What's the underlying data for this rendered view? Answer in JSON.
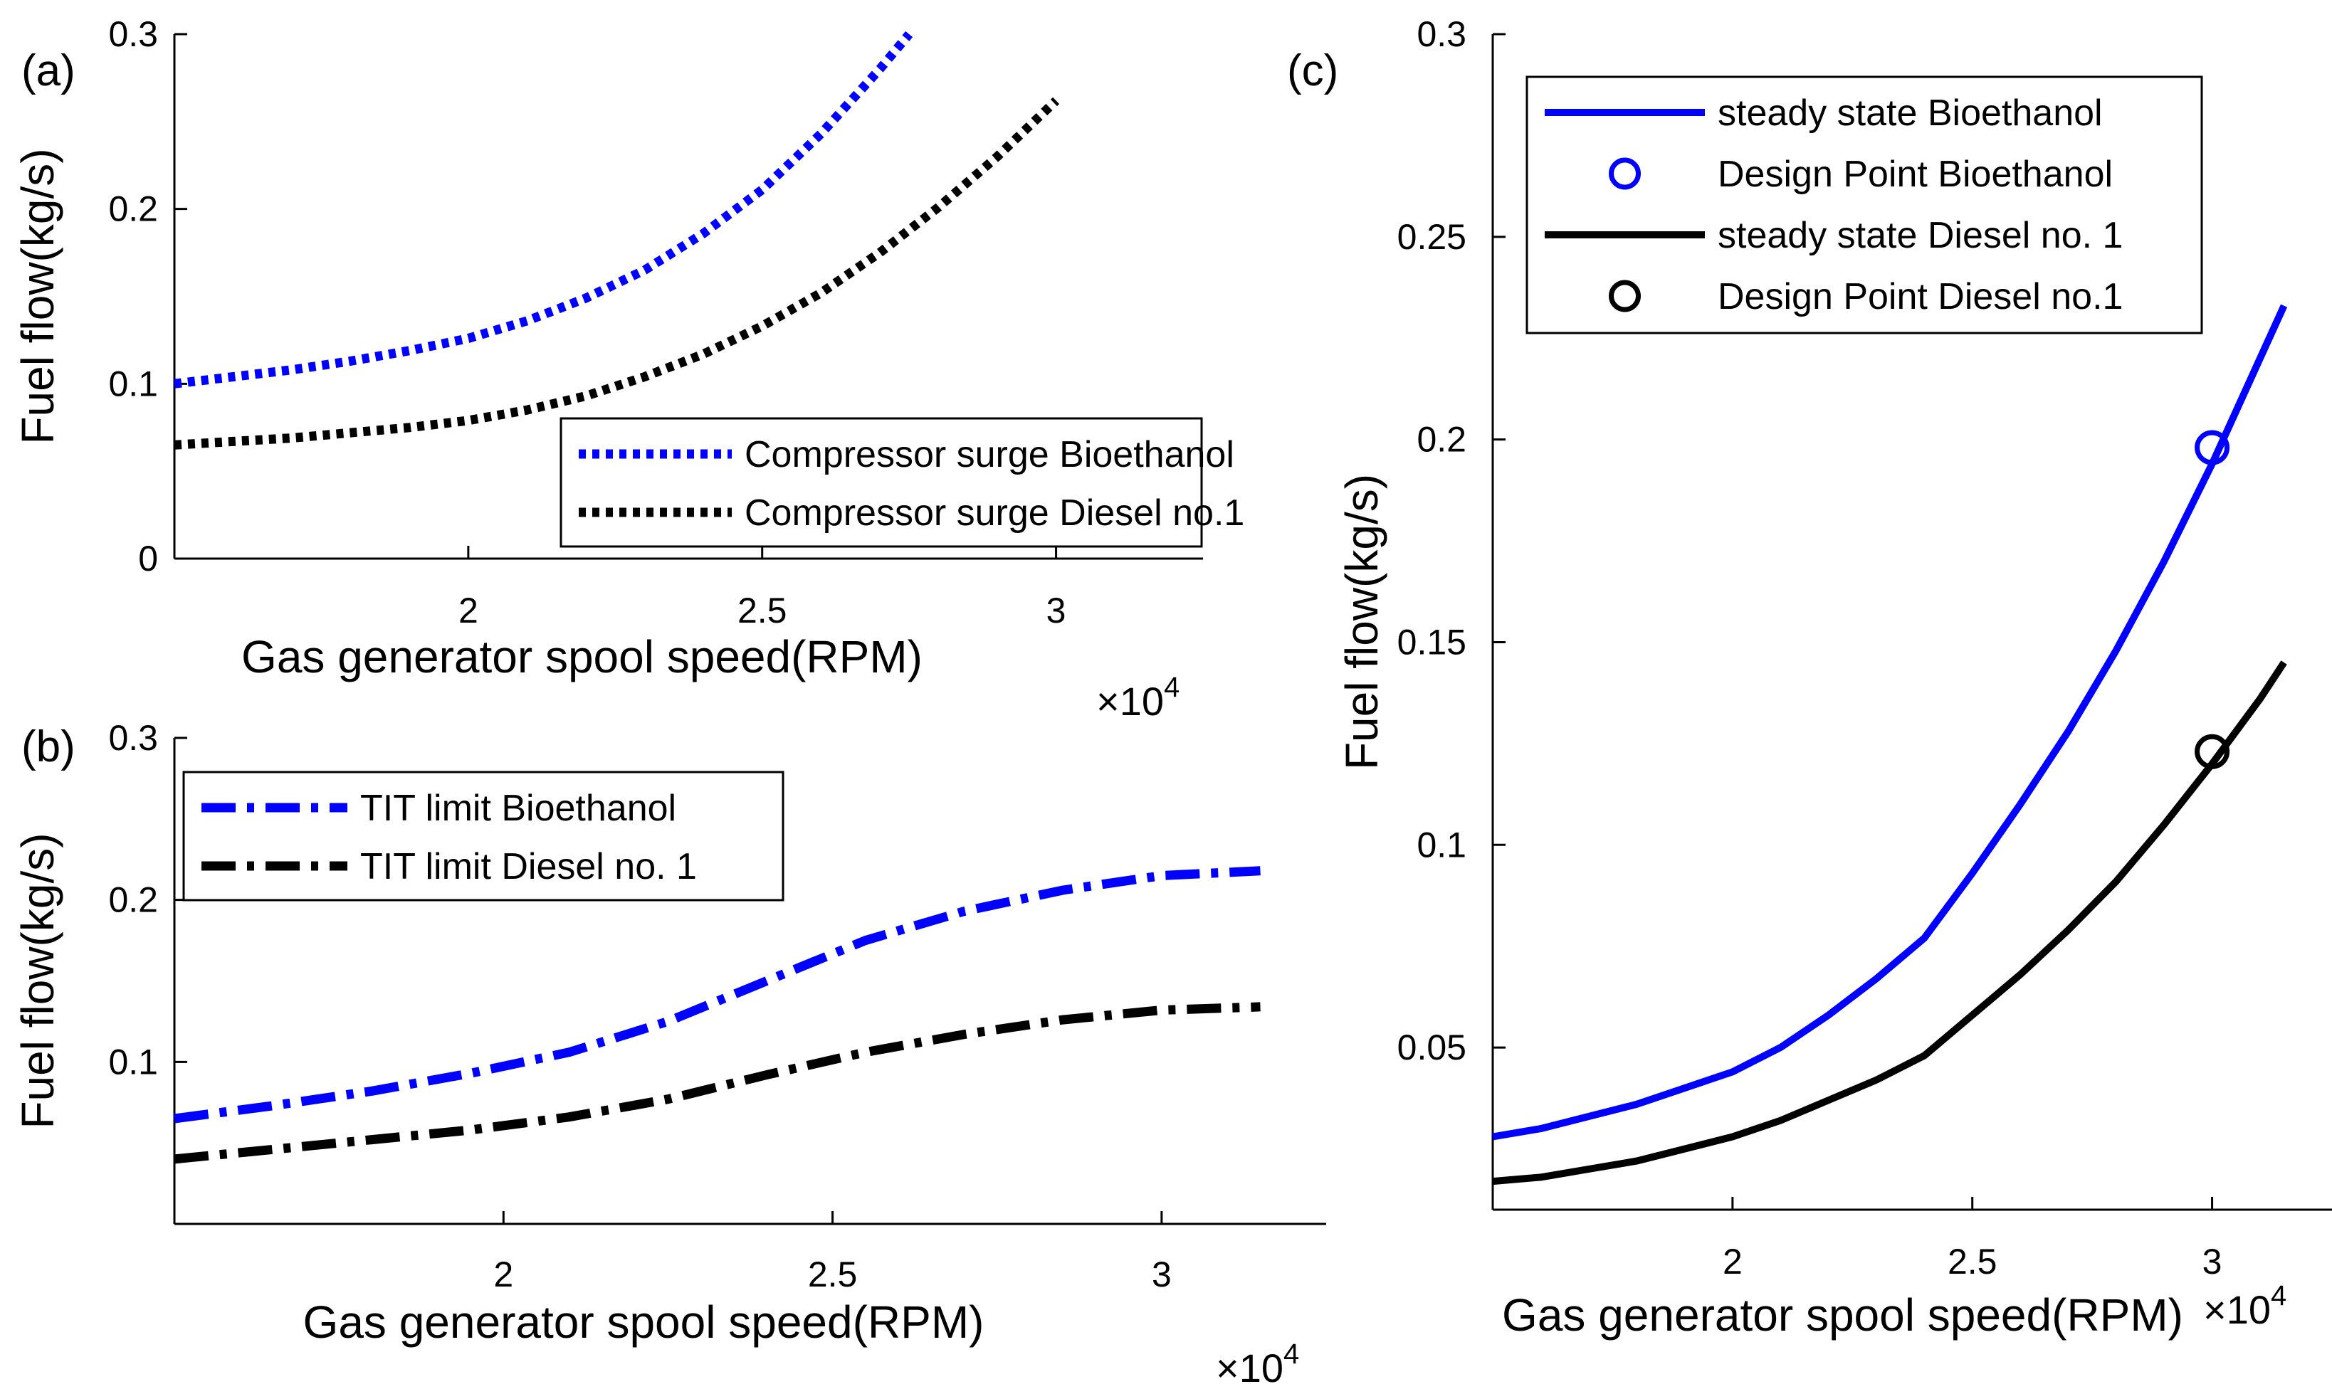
{
  "chart_data": [
    {
      "panel": "(a)",
      "type": "line",
      "xlabel": "Gas generator spool speed(RPM)",
      "ylabel": "Fuel flow(kg/s)",
      "x_multiplier": "×10",
      "x_exponent": "4",
      "xlim": [
        15000,
        32500
      ],
      "ylim": [
        0,
        0.3
      ],
      "xticks": [
        20000,
        25000,
        30000
      ],
      "xtick_labels": [
        "2",
        "2.5",
        "3"
      ],
      "yticks": [
        0,
        0.1,
        0.2,
        0.3
      ],
      "ytick_labels": [
        "0",
        "0.1",
        "0.2",
        "0.3"
      ],
      "legend": "bottom-right",
      "series": [
        {
          "name": "Compressor surge Bioethanol",
          "color": "#0000ff",
          "style": "dotted",
          "x": [
            15000,
            16000,
            17000,
            18000,
            19000,
            20000,
            21000,
            22000,
            23000,
            24000,
            25000,
            26000,
            27000,
            27500
          ],
          "y": [
            0.1,
            0.104,
            0.108,
            0.113,
            0.119,
            0.126,
            0.136,
            0.149,
            0.165,
            0.186,
            0.211,
            0.243,
            0.28,
            0.3
          ]
        },
        {
          "name": "Compressor surge Diesel no.1",
          "color": "#000000",
          "style": "dotted",
          "x": [
            15000,
            16000,
            17000,
            18000,
            19000,
            20000,
            21000,
            22000,
            23000,
            24000,
            25000,
            26000,
            27000,
            28000,
            29000,
            30000
          ],
          "y": [
            0.065,
            0.067,
            0.069,
            0.072,
            0.075,
            0.079,
            0.085,
            0.093,
            0.104,
            0.117,
            0.133,
            0.152,
            0.175,
            0.201,
            0.23,
            0.262
          ]
        }
      ]
    },
    {
      "panel": "(b)",
      "type": "line",
      "xlabel": "Gas generator spool speed(RPM)",
      "ylabel": "Fuel flow(kg/s)",
      "x_multiplier": "×10",
      "x_exponent": "4",
      "xlim": [
        15000,
        32500
      ],
      "ylim": [
        0,
        0.3
      ],
      "xticks": [
        20000,
        25000,
        30000
      ],
      "xtick_labels": [
        "2",
        "2.5",
        "3"
      ],
      "yticks": [
        0.1,
        0.2,
        0.3
      ],
      "ytick_labels": [
        "0.1",
        "0.2",
        "0.3"
      ],
      "legend": "top-left",
      "series": [
        {
          "name": "TIT limit Bioethanol",
          "color": "#0000ff",
          "style": "dashdot",
          "x": [
            15000,
            16500,
            18000,
            19500,
            21000,
            22500,
            24000,
            25500,
            27000,
            28500,
            30000,
            31500
          ],
          "y": [
            0.065,
            0.073,
            0.082,
            0.093,
            0.106,
            0.125,
            0.15,
            0.175,
            0.193,
            0.206,
            0.215,
            0.218
          ]
        },
        {
          "name": "TIT limit Diesel no. 1",
          "color": "#000000",
          "style": "dashdot",
          "x": [
            15000,
            16500,
            18000,
            19500,
            21000,
            22500,
            24000,
            25500,
            27000,
            28500,
            30000,
            31500
          ],
          "y": [
            0.04,
            0.046,
            0.052,
            0.058,
            0.066,
            0.077,
            0.092,
            0.106,
            0.117,
            0.126,
            0.132,
            0.134
          ]
        }
      ]
    },
    {
      "panel": "(c)",
      "type": "line",
      "xlabel": "Gas generator spool speed(RPM)",
      "ylabel": "Fuel flow(kg/s)",
      "x_multiplier": "×10",
      "x_exponent": "4",
      "xlim": [
        15000,
        32500
      ],
      "ylim": [
        0.01,
        0.3
      ],
      "xticks": [
        20000,
        25000,
        30000
      ],
      "xtick_labels": [
        "2",
        "2.5",
        "3"
      ],
      "yticks": [
        0.05,
        0.1,
        0.15,
        0.2,
        0.25,
        0.3
      ],
      "ytick_labels": [
        "0.05",
        "0.1",
        "0.15",
        "0.2",
        "0.25",
        "0.3"
      ],
      "legend": "top-left",
      "series": [
        {
          "name": "steady state Bioethanol",
          "color": "#0000ff",
          "style": "solid",
          "x": [
            15000,
            16000,
            17000,
            18000,
            19000,
            20000,
            21000,
            22000,
            23000,
            24000,
            25000,
            26000,
            27000,
            28000,
            29000,
            30000,
            31000,
            31500
          ],
          "y": [
            0.028,
            0.03,
            0.033,
            0.036,
            0.04,
            0.044,
            0.05,
            0.058,
            0.067,
            0.077,
            0.093,
            0.11,
            0.128,
            0.148,
            0.17,
            0.194,
            0.22,
            0.233
          ]
        },
        {
          "name": "Design Point Bioethanol",
          "color": "#0000ff",
          "style": "marker-circle",
          "x": [
            30000
          ],
          "y": [
            0.198
          ]
        },
        {
          "name": "steady state Diesel no. 1",
          "color": "#000000",
          "style": "solid",
          "x": [
            15000,
            16000,
            17000,
            18000,
            19000,
            20000,
            21000,
            22000,
            23000,
            24000,
            25000,
            26000,
            27000,
            28000,
            29000,
            30000,
            31000,
            31500
          ],
          "y": [
            0.017,
            0.018,
            0.02,
            0.022,
            0.025,
            0.028,
            0.032,
            0.037,
            0.042,
            0.048,
            0.058,
            0.068,
            0.079,
            0.091,
            0.105,
            0.12,
            0.136,
            0.145
          ]
        },
        {
          "name": "Design Point Diesel no.1",
          "color": "#000000",
          "style": "marker-circle",
          "x": [
            30000
          ],
          "y": [
            0.123
          ]
        }
      ]
    }
  ]
}
